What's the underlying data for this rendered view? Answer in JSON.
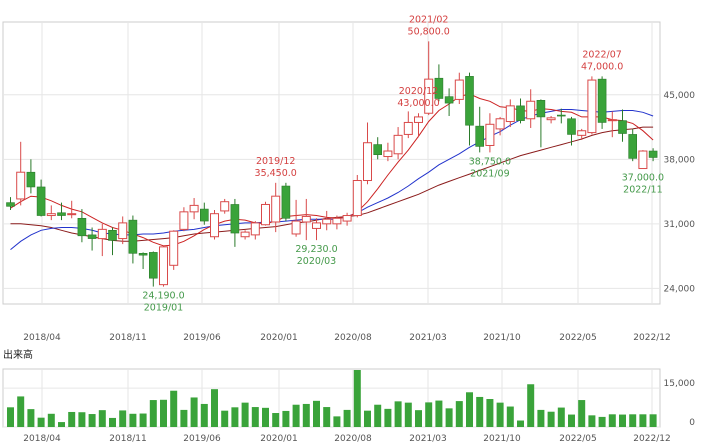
{
  "chart_data": {
    "type": "candlestick",
    "price_axis": {
      "ticks": [
        24000,
        31000,
        38000,
        45000
      ],
      "tick_labels": [
        "24,000",
        "31,000",
        "38,000",
        "45,000"
      ],
      "range": [
        22300,
        52900
      ]
    },
    "date_axis": {
      "labels": [
        "2018/04",
        "2018/11",
        "2019/06",
        "2020/01",
        "2020/08",
        "2021/03",
        "2021/10",
        "2022/05",
        "2022/12"
      ]
    },
    "candles": [
      {
        "o": 33300,
        "h": 33900,
        "l": 32500,
        "c": 32900
      },
      {
        "o": 33700,
        "h": 39900,
        "l": 33000,
        "c": 36600
      },
      {
        "o": 36600,
        "h": 38000,
        "l": 34300,
        "c": 35000
      },
      {
        "o": 35000,
        "h": 35800,
        "l": 31800,
        "c": 31900
      },
      {
        "o": 31900,
        "h": 33000,
        "l": 31400,
        "c": 32100
      },
      {
        "o": 32200,
        "h": 33300,
        "l": 31400,
        "c": 31900
      },
      {
        "o": 32000,
        "h": 33500,
        "l": 31600,
        "c": 32100
      },
      {
        "o": 31600,
        "h": 32600,
        "l": 29000,
        "c": 29700
      },
      {
        "o": 29800,
        "h": 30600,
        "l": 28100,
        "c": 29400
      },
      {
        "o": 29400,
        "h": 31000,
        "l": 27500,
        "c": 30400
      },
      {
        "o": 30300,
        "h": 30600,
        "l": 27600,
        "c": 29200
      },
      {
        "o": 29400,
        "h": 31800,
        "l": 28800,
        "c": 31100
      },
      {
        "o": 31400,
        "h": 31900,
        "l": 26700,
        "c": 27800
      },
      {
        "o": 27800,
        "h": 27900,
        "l": 26100,
        "c": 27600
      },
      {
        "o": 27900,
        "h": 28000,
        "l": 24190,
        "c": 25100
      },
      {
        "o": 24400,
        "h": 28600,
        "l": 24190,
        "c": 28500
      },
      {
        "o": 26500,
        "h": 30300,
        "l": 26000,
        "c": 30200
      },
      {
        "o": 30400,
        "h": 32800,
        "l": 30200,
        "c": 32300
      },
      {
        "o": 32300,
        "h": 33800,
        "l": 31500,
        "c": 33000
      },
      {
        "o": 32600,
        "h": 33300,
        "l": 30900,
        "c": 31300
      },
      {
        "o": 29600,
        "h": 32500,
        "l": 29300,
        "c": 32100
      },
      {
        "o": 32400,
        "h": 33700,
        "l": 32100,
        "c": 33400
      },
      {
        "o": 33100,
        "h": 33700,
        "l": 28500,
        "c": 30000
      },
      {
        "o": 29600,
        "h": 30300,
        "l": 29300,
        "c": 30100
      },
      {
        "o": 29800,
        "h": 31300,
        "l": 29300,
        "c": 31100
      },
      {
        "o": 30900,
        "h": 33400,
        "l": 30800,
        "c": 33100
      },
      {
        "o": 31200,
        "h": 35450,
        "l": 30100,
        "c": 34000
      },
      {
        "o": 35100,
        "h": 35450,
        "l": 31300,
        "c": 31600
      },
      {
        "o": 29900,
        "h": 33600,
        "l": 29600,
        "c": 31300
      },
      {
        "o": 31200,
        "h": 33700,
        "l": 29230,
        "c": 31800
      },
      {
        "o": 30500,
        "h": 31600,
        "l": 29230,
        "c": 31100
      },
      {
        "o": 31000,
        "h": 32400,
        "l": 30300,
        "c": 31500
      },
      {
        "o": 31000,
        "h": 31900,
        "l": 30400,
        "c": 31600
      },
      {
        "o": 31300,
        "h": 32200,
        "l": 30800,
        "c": 31900
      },
      {
        "o": 31900,
        "h": 36300,
        "l": 31700,
        "c": 35700
      },
      {
        "o": 35700,
        "h": 42000,
        "l": 35300,
        "c": 39800
      },
      {
        "o": 39600,
        "h": 40400,
        "l": 38000,
        "c": 38500
      },
      {
        "o": 38300,
        "h": 39800,
        "l": 37800,
        "c": 38900
      },
      {
        "o": 38600,
        "h": 41500,
        "l": 38000,
        "c": 40600
      },
      {
        "o": 40700,
        "h": 43200,
        "l": 40300,
        "c": 42000
      },
      {
        "o": 42000,
        "h": 43000,
        "l": 40400,
        "c": 42600
      },
      {
        "o": 43000,
        "h": 50800,
        "l": 42800,
        "c": 46700
      },
      {
        "o": 46800,
        "h": 48300,
        "l": 44300,
        "c": 44600
      },
      {
        "o": 44800,
        "h": 45700,
        "l": 42700,
        "c": 44100
      },
      {
        "o": 44500,
        "h": 47400,
        "l": 44000,
        "c": 46600
      },
      {
        "o": 47000,
        "h": 47400,
        "l": 39500,
        "c": 41700
      },
      {
        "o": 41600,
        "h": 43700,
        "l": 38750,
        "c": 39400
      },
      {
        "o": 39500,
        "h": 43000,
        "l": 38750,
        "c": 41800
      },
      {
        "o": 41300,
        "h": 42600,
        "l": 40600,
        "c": 42400
      },
      {
        "o": 42100,
        "h": 44500,
        "l": 41500,
        "c": 43800
      },
      {
        "o": 43800,
        "h": 44600,
        "l": 41900,
        "c": 42200
      },
      {
        "o": 42400,
        "h": 45600,
        "l": 41400,
        "c": 44300
      },
      {
        "o": 44400,
        "h": 44500,
        "l": 39300,
        "c": 42600
      },
      {
        "o": 42300,
        "h": 42700,
        "l": 41900,
        "c": 42500
      },
      {
        "o": 42800,
        "h": 43500,
        "l": 41900,
        "c": 42700
      },
      {
        "o": 42400,
        "h": 42600,
        "l": 39500,
        "c": 40700
      },
      {
        "o": 40600,
        "h": 41300,
        "l": 40100,
        "c": 41100
      },
      {
        "o": 40900,
        "h": 47000,
        "l": 40700,
        "c": 46600
      },
      {
        "o": 46700,
        "h": 47000,
        "l": 41300,
        "c": 42000
      },
      {
        "o": 42200,
        "h": 43200,
        "l": 40400,
        "c": 42300
      },
      {
        "o": 42200,
        "h": 43400,
        "l": 39900,
        "c": 40800
      },
      {
        "o": 40700,
        "h": 41300,
        "l": 37800,
        "c": 38100
      },
      {
        "o": 37000,
        "h": 39000,
        "l": 37000,
        "c": 38900
      },
      {
        "o": 38900,
        "h": 39200,
        "l": 37800,
        "c": 38200
      }
    ],
    "ma_short": [
      32700,
      33400,
      34000,
      33900,
      33500,
      33000,
      32600,
      32300,
      31700,
      31100,
      30600,
      30300,
      29900,
      29500,
      29000,
      28600,
      28700,
      29100,
      29700,
      30400,
      30900,
      31300,
      31500,
      31400,
      31100,
      31000,
      31300,
      31800,
      31900,
      32000,
      31900,
      31700,
      31600,
      31700,
      32300,
      33400,
      34800,
      36300,
      37700,
      39000,
      40500,
      42100,
      43300,
      44000,
      44800,
      45100,
      44600,
      44300,
      43700,
      43600,
      43300,
      43200,
      43500,
      43400,
      43200,
      43100,
      42600,
      42600,
      42600,
      42300,
      42200,
      41900,
      41100,
      40100
    ],
    "ma_mid": [
      28200,
      29100,
      29800,
      30300,
      30500,
      30600,
      30600,
      30500,
      30300,
      30000,
      29900,
      29800,
      29800,
      29900,
      29900,
      30000,
      30200,
      30300,
      30400,
      30600,
      30800,
      30900,
      31000,
      31100,
      31100,
      31200,
      31200,
      31300,
      31400,
      31500,
      31500,
      31500,
      31500,
      31800,
      32200,
      32800,
      33300,
      33800,
      34400,
      35100,
      35900,
      36600,
      37400,
      38000,
      38600,
      39300,
      39900,
      40500,
      41000,
      41700,
      42300,
      42700,
      43000,
      43200,
      43400,
      43400,
      43300,
      43200,
      43100,
      43200,
      43300,
      43300,
      43100,
      42700
    ],
    "ma_long": [
      31000,
      31000,
      30900,
      30800,
      30600,
      30300,
      30000,
      29800,
      29600,
      29400,
      29200,
      29100,
      29100,
      29200,
      29300,
      29400,
      29500,
      29700,
      29900,
      30000,
      30100,
      30200,
      30300,
      30400,
      30500,
      30600,
      30700,
      30900,
      31100,
      31200,
      31400,
      31600,
      31700,
      31800,
      31900,
      32200,
      32600,
      33000,
      33400,
      33800,
      34200,
      34700,
      35200,
      35600,
      36000,
      36400,
      36800,
      37200,
      37600,
      38000,
      38400,
      38700,
      39000,
      39300,
      39600,
      39900,
      40200,
      40600,
      40900,
      41100,
      41200,
      41300,
      41500,
      41500
    ],
    "annotations": [
      {
        "i": 15,
        "price_label": "24,190.0",
        "date_label": "2019/01",
        "kind": "low"
      },
      {
        "i": 26,
        "price_label": "35,450.0",
        "date_label": "2019/12",
        "kind": "high"
      },
      {
        "i": 30,
        "price_label": "29,230.0",
        "date_label": "2020/03",
        "kind": "low"
      },
      {
        "i": 40,
        "price_label": "43,000.0",
        "date_label": "2020/12",
        "kind": "high"
      },
      {
        "i": 41,
        "price_label": "50,800.0",
        "date_label": "2021/02",
        "kind": "high"
      },
      {
        "i": 47,
        "price_label": "38,750.0",
        "date_label": "2021/09",
        "kind": "low"
      },
      {
        "i": 58,
        "price_label": "47,000.0",
        "date_label": "2022/07",
        "kind": "high"
      },
      {
        "i": 62,
        "price_label": "37,000.0",
        "date_label": "2022/11",
        "kind": "low"
      }
    ],
    "volume": {
      "title": "出来高",
      "ticks": [
        0,
        15000
      ],
      "tick_labels": [
        "0",
        "15,000"
      ],
      "values": [
        7600,
        11800,
        6900,
        3600,
        5100,
        1900,
        5800,
        5700,
        5000,
        6500,
        3500,
        6400,
        5100,
        5200,
        10400,
        10500,
        14000,
        6600,
        11400,
        8900,
        14600,
        6300,
        7600,
        9400,
        7700,
        7400,
        5400,
        6200,
        8600,
        8900,
        10100,
        7700,
        4100,
        6600,
        22000,
        6300,
        8600,
        7000,
        9900,
        9400,
        6500,
        9500,
        10200,
        7200,
        10000,
        13400,
        11600,
        10800,
        9400,
        7900,
        2500,
        16500,
        6600,
        5900,
        7500,
        4800,
        10400,
        4500,
        3900,
        4900,
        4800,
        4900,
        4900,
        4900
      ],
      "max": 22000
    },
    "colors": {
      "up": "#d94a4a",
      "down": "#3aa33a",
      "ma_short": "#cc2222",
      "ma_mid": "#2233cc",
      "ma_long": "#8b1c1c",
      "high_label": "#d44040",
      "low_label": "#44994a"
    }
  }
}
